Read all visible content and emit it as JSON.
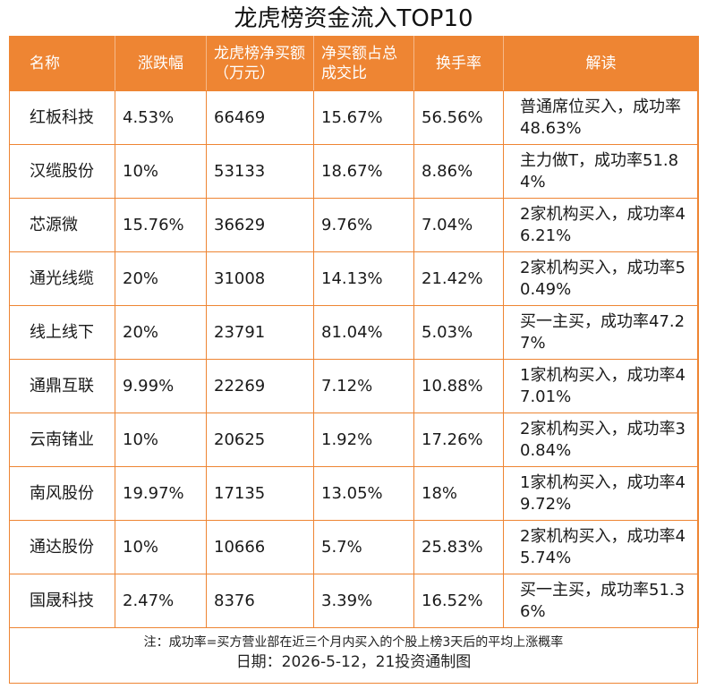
{
  "title": "龙虎榜资金流入TOP10",
  "table": {
    "headers": {
      "name": "名称",
      "change": "涨跌幅",
      "net_buy": "龙虎榜净买额（万元）",
      "ratio": "净买额占总成交比",
      "turnover": "换手率",
      "note": "解读"
    },
    "rows": [
      {
        "name": "红板科技",
        "change": "4.53%",
        "net_buy": "66469",
        "ratio": "15.67%",
        "turnover": "56.56%",
        "note": "普通席位买入，成功率48.63%"
      },
      {
        "name": "汉缆股份",
        "change": "10%",
        "net_buy": "53133",
        "ratio": "18.67%",
        "turnover": "8.86%",
        "note": "主力做T，成功率51.84%"
      },
      {
        "name": "芯源微",
        "change": "15.76%",
        "net_buy": "36629",
        "ratio": "9.76%",
        "turnover": "7.04%",
        "note": "2家机构买入，成功率46.21%"
      },
      {
        "name": "通光线缆",
        "change": "20%",
        "net_buy": "31008",
        "ratio": "14.13%",
        "turnover": "21.42%",
        "note": "2家机构买入，成功率50.49%"
      },
      {
        "name": "线上线下",
        "change": "20%",
        "net_buy": "23791",
        "ratio": "81.04%",
        "turnover": "5.03%",
        "note": "买一主买，成功率47.27%"
      },
      {
        "name": "通鼎互联",
        "change": "9.99%",
        "net_buy": "22269",
        "ratio": "7.12%",
        "turnover": "10.88%",
        "note": "1家机构买入，成功率47.01%"
      },
      {
        "name": "云南锗业",
        "change": "10%",
        "net_buy": "20625",
        "ratio": "1.92%",
        "turnover": "17.26%",
        "note": "2家机构买入，成功率30.84%"
      },
      {
        "name": "南风股份",
        "change": "19.97%",
        "net_buy": "17135",
        "ratio": "13.05%",
        "turnover": "18%",
        "note": "1家机构买入，成功率49.72%"
      },
      {
        "name": "通达股份",
        "change": "10%",
        "net_buy": "10666",
        "ratio": "5.7%",
        "turnover": "25.83%",
        "note": "2家机构买入，成功率45.74%"
      },
      {
        "name": "国晟科技",
        "change": "2.47%",
        "net_buy": "8376",
        "ratio": "3.39%",
        "turnover": "16.52%",
        "note": "买一主买，成功率51.36%"
      }
    ]
  },
  "footnote": "注：成功率=买方营业部在近三个月内买入的个股上榜3天后的平均上涨概率",
  "date_line": "日期：2026-5-12，21投资通制图",
  "colors": {
    "header_bg": "#ee8533",
    "border": "#ee8533",
    "header_text": "#ffffff"
  }
}
